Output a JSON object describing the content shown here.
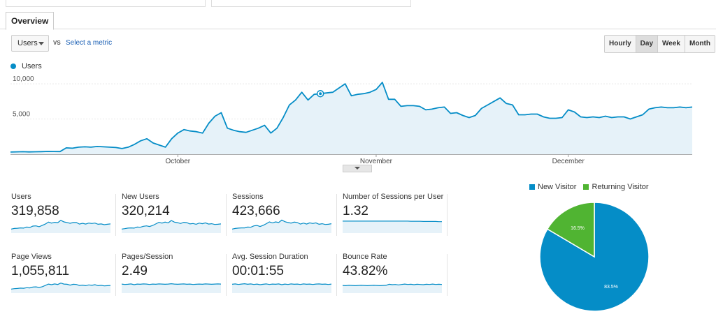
{
  "tabs": [
    {
      "label": "Overview"
    }
  ],
  "controls": {
    "metric": "Users",
    "vs": "VS",
    "select_metric": "Select a metric",
    "granularity": [
      "Hourly",
      "Day",
      "Week",
      "Month"
    ],
    "active_granularity": "Day"
  },
  "chart_data": [
    {
      "type": "area",
      "series": [
        {
          "name": "Users",
          "color": "#058dc7",
          "values": [
            310,
            340,
            360,
            330,
            350,
            370,
            400,
            390,
            380,
            900,
            850,
            1000,
            1050,
            1000,
            1100,
            1050,
            1000,
            950,
            800,
            1000,
            1400,
            1900,
            2200,
            1600,
            1300,
            1000,
            2200,
            3000,
            3500,
            3300,
            3200,
            3000,
            4400,
            5400,
            5900,
            3700,
            3400,
            3200,
            3100,
            3400,
            3700,
            4100,
            3000,
            3700,
            5200,
            7000,
            7700,
            8800,
            7700,
            8500,
            8600,
            8700,
            8800,
            9400,
            10000,
            8300,
            8500,
            8600,
            8800,
            9200,
            10200,
            7800,
            7800,
            6800,
            6900,
            6900,
            6800,
            6300,
            6400,
            6600,
            6700,
            5800,
            5900,
            5500,
            5200,
            5500,
            6500,
            7000,
            7500,
            8000,
            7200,
            7000,
            5600,
            5600,
            5700,
            5700,
            5300,
            5100,
            5100,
            5200,
            6300,
            6000,
            5300,
            5200,
            5300,
            5200,
            5400,
            5200,
            5300,
            5300,
            5000,
            5300,
            5600,
            6400,
            6600,
            6700,
            6600,
            6600,
            6700,
            6600,
            6700
          ]
        }
      ],
      "highlight_index": 50,
      "y_ticks": [
        "10,000",
        "5,000"
      ],
      "y_tick_values": [
        10000,
        5000
      ],
      "ylim": [
        0,
        11000
      ],
      "x_labels": [
        {
          "label": "October",
          "index": 27
        },
        {
          "label": "November",
          "index": 59
        },
        {
          "label": "December",
          "index": 90
        }
      ],
      "legend_position": "top-left",
      "grid": true
    },
    {
      "type": "pie",
      "slices": [
        {
          "label": "New Visitor",
          "value": 83.5,
          "text": "83.5%",
          "color": "#058dc7"
        },
        {
          "label": "Returning Visitor",
          "value": 16.5,
          "text": "16.5%",
          "color": "#50b432"
        }
      ],
      "legend_position": "top"
    }
  ],
  "metrics": [
    {
      "label": "Users",
      "value": "319,858",
      "spark": [
        2,
        2.3,
        2.4,
        2.6,
        2.5,
        3,
        2.8,
        3.5,
        3.6,
        3.2,
        3.8,
        4.5,
        5.5,
        5,
        5.4,
        5.2,
        6.4,
        5.6,
        5.3,
        4.9,
        5.3,
        5.3,
        4.5,
        4.9,
        4.5,
        5,
        4.8,
        5,
        4.4,
        4.6,
        4.2,
        4.4,
        4.6
      ]
    },
    {
      "label": "New Users",
      "value": "320,214",
      "spark": [
        2,
        2.2,
        2.5,
        2.6,
        2.5,
        3,
        2.9,
        3.4,
        3.6,
        3.3,
        3.8,
        4.6,
        5.4,
        5,
        5.5,
        5.1,
        6.3,
        5.5,
        5.2,
        4.8,
        5.4,
        5.2,
        4.6,
        4.8,
        4.4,
        5,
        4.7,
        5.1,
        4.5,
        4.7,
        4.3,
        4.4,
        4.6
      ]
    },
    {
      "label": "Sessions",
      "value": "423,666",
      "spark": [
        2,
        2.3,
        2.5,
        2.6,
        2.6,
        3,
        2.9,
        3.6,
        3.8,
        3.3,
        3.9,
        4.7,
        5.6,
        5.1,
        5.6,
        5.3,
        6.5,
        5.7,
        5.3,
        5,
        5.5,
        5.3,
        4.5,
        5,
        4.5,
        5.1,
        4.8,
        5.1,
        4.4,
        4.7,
        4.3,
        4.4,
        4.7
      ]
    },
    {
      "label": "Number of Sessions per User",
      "value": "1.32",
      "spark": [
        6,
        6,
        6,
        6,
        6,
        6,
        6,
        6,
        6,
        6,
        6,
        6,
        6,
        6,
        6,
        6,
        6,
        6,
        6,
        6,
        6,
        6,
        5.9,
        5.9,
        5.9,
        5.9,
        5.8,
        5.8,
        5.8,
        5.8,
        5.8,
        5.7,
        5.7
      ]
    },
    {
      "label": "Page Views",
      "value": "1,055,811",
      "spark": [
        2,
        2.2,
        2.3,
        2.5,
        2.4,
        2.7,
        2.6,
        3,
        3.1,
        2.8,
        3.2,
        3.8,
        4.5,
        4.2,
        4.6,
        4.3,
        5,
        4.5,
        4.4,
        4,
        4.4,
        4.3,
        3.8,
        4,
        3.7,
        4.1,
        3.9,
        4.2,
        3.7,
        3.9,
        3.6,
        3.7,
        3.8
      ]
    },
    {
      "label": "Pages/Session",
      "value": "2.49",
      "spark": [
        4.5,
        4.3,
        4.4,
        4.6,
        4.2,
        4.5,
        4.4,
        4.6,
        4.5,
        4.3,
        4.5,
        4.4,
        4.6,
        4.5,
        4.4,
        4.5,
        4.7,
        4.5,
        4.4,
        4.5,
        4.6,
        4.4,
        4.5,
        4.3,
        4.4,
        4.5,
        4.4,
        4.6,
        4.5,
        4.4,
        4.5,
        4.6,
        4.5
      ]
    },
    {
      "label": "Avg. Session Duration",
      "value": "00:01:55",
      "spark": [
        4.4,
        4.6,
        4.3,
        4.5,
        4.7,
        4.4,
        4.6,
        4.3,
        4.5,
        4.2,
        4.4,
        4.6,
        4.3,
        4.5,
        4.4,
        4.6,
        4.2,
        4.5,
        4.3,
        4.6,
        4.4,
        4.5,
        4.3,
        4.6,
        4.4,
        4.5,
        4.3,
        4.5,
        4.6,
        4.4,
        4.5,
        4.3,
        4.5
      ]
    },
    {
      "label": "Bounce Rate",
      "value": "43.82%",
      "spark": [
        3.8,
        3.7,
        3.9,
        3.8,
        3.7,
        3.8,
        3.9,
        3.8,
        3.7,
        3.8,
        3.9,
        3.8,
        3.7,
        3.8,
        3.9,
        4.4,
        4.2,
        4.3,
        4.1,
        4.3,
        4.5,
        4.3,
        4.4,
        4.2,
        4.4,
        4.3,
        4.2,
        4.4,
        4.3,
        4.5,
        4.3,
        4.4,
        4.3
      ]
    }
  ]
}
